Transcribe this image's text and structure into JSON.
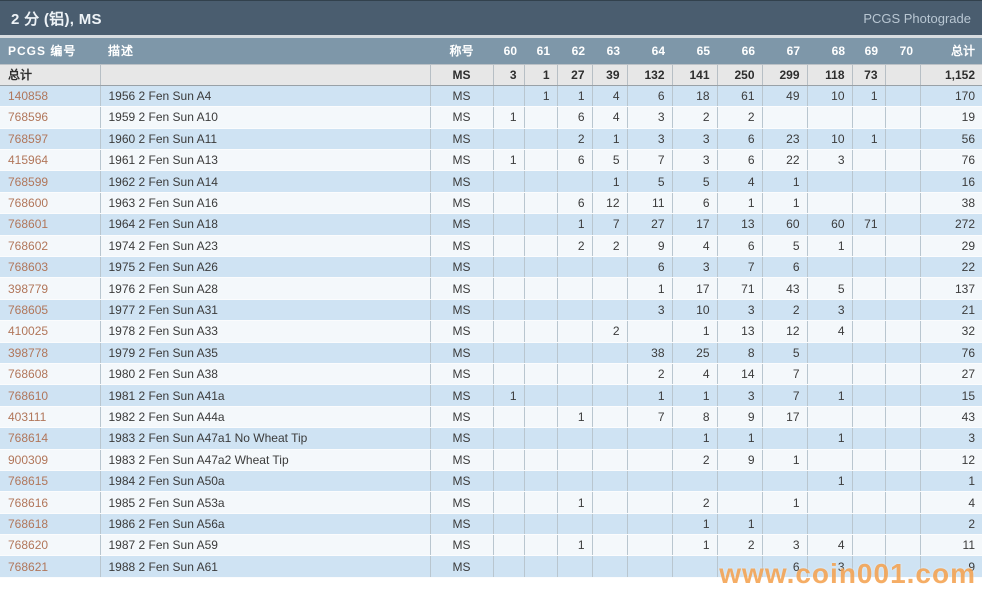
{
  "title_bar": {
    "title": "2 分 (铝), MS",
    "right_link": "PCGS Photograde"
  },
  "table": {
    "columns": [
      "PCGS 编号",
      "描述",
      "称号",
      "60",
      "61",
      "62",
      "63",
      "64",
      "65",
      "66",
      "67",
      "68",
      "69",
      "70",
      "总计"
    ],
    "column_keys": [
      "pcgs-no",
      "description",
      "designation",
      "60",
      "61",
      "62",
      "63",
      "64",
      "65",
      "66",
      "67",
      "68",
      "69",
      "70",
      "total"
    ],
    "totals_row": {
      "label": "总计",
      "description": "",
      "designation": "MS",
      "grades": [
        "3",
        "1",
        "27",
        "39",
        "132",
        "141",
        "250",
        "299",
        "118",
        "73",
        ""
      ],
      "total": "1,152"
    },
    "rows": [
      {
        "pcgs_no": "140858",
        "description": "1956 2 Fen Sun  A4",
        "designation": "MS",
        "grades": [
          "",
          "1",
          "1",
          "4",
          "6",
          "18",
          "61",
          "49",
          "10",
          "1",
          ""
        ],
        "total": "170"
      },
      {
        "pcgs_no": "768596",
        "description": "1959 2 Fen Sun  A10",
        "designation": "MS",
        "grades": [
          "1",
          "",
          "6",
          "4",
          "3",
          "2",
          "2",
          "",
          "",
          "",
          ""
        ],
        "total": "19"
      },
      {
        "pcgs_no": "768597",
        "description": "1960 2 Fen Sun  A11",
        "designation": "MS",
        "grades": [
          "",
          "",
          "2",
          "1",
          "3",
          "3",
          "6",
          "23",
          "10",
          "1",
          ""
        ],
        "total": "56"
      },
      {
        "pcgs_no": "415964",
        "description": "1961 2 Fen Sun  A13",
        "designation": "MS",
        "grades": [
          "1",
          "",
          "6",
          "5",
          "7",
          "3",
          "6",
          "22",
          "3",
          "",
          ""
        ],
        "total": "76"
      },
      {
        "pcgs_no": "768599",
        "description": "1962 2 Fen Sun  A14",
        "designation": "MS",
        "grades": [
          "",
          "",
          "",
          "1",
          "5",
          "5",
          "4",
          "1",
          "",
          "",
          ""
        ],
        "total": "16"
      },
      {
        "pcgs_no": "768600",
        "description": "1963 2 Fen Sun  A16",
        "designation": "MS",
        "grades": [
          "",
          "",
          "6",
          "12",
          "11",
          "6",
          "1",
          "1",
          "",
          "",
          ""
        ],
        "total": "38"
      },
      {
        "pcgs_no": "768601",
        "description": "1964 2 Fen Sun  A18",
        "designation": "MS",
        "grades": [
          "",
          "",
          "1",
          "7",
          "27",
          "17",
          "13",
          "60",
          "60",
          "71",
          ""
        ],
        "total": "272"
      },
      {
        "pcgs_no": "768602",
        "description": "1974 2 Fen Sun  A23",
        "designation": "MS",
        "grades": [
          "",
          "",
          "2",
          "2",
          "9",
          "4",
          "6",
          "5",
          "1",
          "",
          ""
        ],
        "total": "29"
      },
      {
        "pcgs_no": "768603",
        "description": "1975 2 Fen Sun  A26",
        "designation": "MS",
        "grades": [
          "",
          "",
          "",
          "",
          "6",
          "3",
          "7",
          "6",
          "",
          "",
          ""
        ],
        "total": "22"
      },
      {
        "pcgs_no": "398779",
        "description": "1976 2 Fen Sun  A28",
        "designation": "MS",
        "grades": [
          "",
          "",
          "",
          "",
          "1",
          "17",
          "71",
          "43",
          "5",
          "",
          ""
        ],
        "total": "137"
      },
      {
        "pcgs_no": "768605",
        "description": "1977 2 Fen Sun  A31",
        "designation": "MS",
        "grades": [
          "",
          "",
          "",
          "",
          "3",
          "10",
          "3",
          "2",
          "3",
          "",
          ""
        ],
        "total": "21"
      },
      {
        "pcgs_no": "410025",
        "description": "1978 2 Fen Sun  A33",
        "designation": "MS",
        "grades": [
          "",
          "",
          "",
          "2",
          "",
          "1",
          "13",
          "12",
          "4",
          "",
          ""
        ],
        "total": "32"
      },
      {
        "pcgs_no": "398778",
        "description": "1979 2 Fen Sun  A35",
        "designation": "MS",
        "grades": [
          "",
          "",
          "",
          "",
          "38",
          "25",
          "8",
          "5",
          "",
          "",
          ""
        ],
        "total": "76"
      },
      {
        "pcgs_no": "768608",
        "description": "1980 2 Fen Sun  A38",
        "designation": "MS",
        "grades": [
          "",
          "",
          "",
          "",
          "2",
          "4",
          "14",
          "7",
          "",
          "",
          ""
        ],
        "total": "27"
      },
      {
        "pcgs_no": "768610",
        "description": "1981 2 Fen Sun  A41a",
        "designation": "MS",
        "grades": [
          "1",
          "",
          "",
          "",
          "1",
          "1",
          "3",
          "7",
          "1",
          "",
          ""
        ],
        "total": "15"
      },
      {
        "pcgs_no": "403111",
        "description": "1982 2 Fen Sun  A44a",
        "designation": "MS",
        "grades": [
          "",
          "",
          "1",
          "",
          "7",
          "8",
          "9",
          "17",
          "",
          "",
          ""
        ],
        "total": "43"
      },
      {
        "pcgs_no": "768614",
        "description": "1983 2 Fen Sun  A47a1 No Wheat Tip",
        "designation": "MS",
        "grades": [
          "",
          "",
          "",
          "",
          "",
          "1",
          "1",
          "",
          "1",
          "",
          ""
        ],
        "total": "3"
      },
      {
        "pcgs_no": "900309",
        "description": "1983 2 Fen Sun  A47a2 Wheat Tip",
        "designation": "MS",
        "grades": [
          "",
          "",
          "",
          "",
          "",
          "2",
          "9",
          "1",
          "",
          "",
          ""
        ],
        "total": "12"
      },
      {
        "pcgs_no": "768615",
        "description": "1984 2 Fen Sun  A50a",
        "designation": "MS",
        "grades": [
          "",
          "",
          "",
          "",
          "",
          "",
          "",
          "",
          "1",
          "",
          ""
        ],
        "total": "1"
      },
      {
        "pcgs_no": "768616",
        "description": "1985 2 Fen Sun  A53a",
        "designation": "MS",
        "grades": [
          "",
          "",
          "1",
          "",
          "",
          "2",
          "",
          "1",
          "",
          "",
          ""
        ],
        "total": "4"
      },
      {
        "pcgs_no": "768618",
        "description": "1986 2 Fen Sun  A56a",
        "designation": "MS",
        "grades": [
          "",
          "",
          "",
          "",
          "",
          "1",
          "1",
          "",
          "",
          "",
          ""
        ],
        "total": "2"
      },
      {
        "pcgs_no": "768620",
        "description": "1987 2 Fen Sun  A59",
        "designation": "MS",
        "grades": [
          "",
          "",
          "1",
          "",
          "",
          "1",
          "2",
          "3",
          "4",
          "",
          ""
        ],
        "total": "11"
      },
      {
        "pcgs_no": "768621",
        "description": "1988 2 Fen Sun  A61",
        "designation": "MS",
        "grades": [
          "",
          "",
          "",
          "",
          "",
          "",
          "",
          "6",
          "3",
          "",
          ""
        ],
        "total": "9"
      }
    ]
  },
  "watermark": "www.coin001.com",
  "colors": {
    "title_bar_bg": "#4a5d6f",
    "header_row_bg": "#7e97a9",
    "totals_row_bg": "#e7e7e7",
    "row_blue": "#cfe3f3",
    "row_white": "#f4f8fb",
    "pcgs_link": "#b1765a",
    "watermark_orange": "#f3993e"
  }
}
